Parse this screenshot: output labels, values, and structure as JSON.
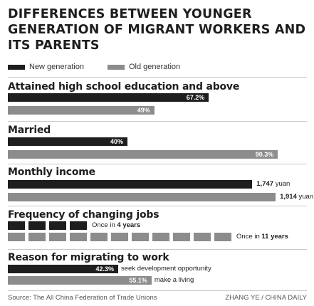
{
  "title": "DIFFERENCES BETWEEN YOUNGER GENERATION OF MIGRANT WORKERS AND ITS PARENTS",
  "legend": [
    {
      "label": "New generation",
      "color": "#1e1e1e"
    },
    {
      "label": "Old generation",
      "color": "#8c8c8c"
    }
  ],
  "chart_data": [
    {
      "type": "bar",
      "title": "Attained high school education and above",
      "series": [
        {
          "name": "New generation",
          "value": 67.2,
          "label": "67.2%"
        },
        {
          "name": "Old generation",
          "value": 49,
          "label": "49%"
        }
      ]
    },
    {
      "type": "bar",
      "title": "Married",
      "series": [
        {
          "name": "New generation",
          "value": 40,
          "label": "40%"
        },
        {
          "name": "Old generation",
          "value": 90.3,
          "label": "90.3%"
        }
      ]
    },
    {
      "type": "bar",
      "title": "Monthly income",
      "unit": "yuan",
      "series": [
        {
          "name": "New generation",
          "value": 1747,
          "label": "1,747",
          "unit_label": "yuan"
        },
        {
          "name": "Old generation",
          "value": 1914,
          "label": "1,914",
          "unit_label": "yuan"
        }
      ]
    },
    {
      "type": "bar",
      "title": "Frequency of changing jobs",
      "series": [
        {
          "name": "New generation",
          "blocks": 4,
          "label_prefix": "Once in ",
          "label_value": "4 years"
        },
        {
          "name": "Old generation",
          "blocks": 11,
          "label_prefix": "Once in ",
          "label_value": "11 years"
        }
      ]
    },
    {
      "type": "bar",
      "title": "Reason for migrating to work",
      "series": [
        {
          "name": "New generation",
          "value": 42.3,
          "label": "42.3%",
          "reason": "seek development opportunity"
        },
        {
          "name": "Old generation",
          "value": 55.1,
          "label": "55.1%",
          "reason": "make a living"
        }
      ]
    }
  ],
  "colors": {
    "new": "#1e1e1e",
    "old": "#8c8c8c",
    "rule": "#c8c8c8"
  },
  "footer": {
    "source": "Source: The All China Federation of Trade Unions",
    "credit": "ZHANG YE / CHINA DAILY"
  }
}
